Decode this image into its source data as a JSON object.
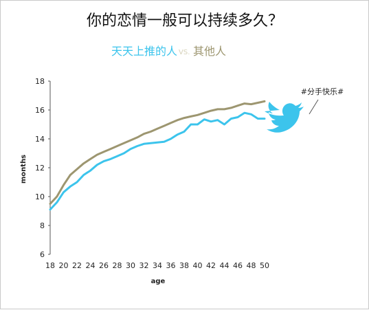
{
  "chart_data": {
    "type": "line",
    "title": "你的恋情一般可以持续多久？",
    "xlabel": "age",
    "ylabel": "months",
    "x": [
      18,
      19,
      20,
      21,
      22,
      23,
      24,
      25,
      26,
      27,
      28,
      29,
      30,
      31,
      32,
      33,
      34,
      35,
      36,
      37,
      38,
      39,
      40,
      41,
      42,
      43,
      44,
      45,
      46,
      47,
      48,
      49,
      50
    ],
    "xticks": [
      18,
      20,
      22,
      24,
      26,
      28,
      30,
      32,
      34,
      36,
      38,
      40,
      42,
      44,
      46,
      48,
      50
    ],
    "yticks": [
      6,
      8,
      10,
      12,
      14,
      16,
      18
    ],
    "xlim": [
      18,
      50
    ],
    "ylim": [
      6,
      18
    ],
    "grid": false,
    "legend": {
      "position": "top-center",
      "separator": "VS."
    },
    "series": [
      {
        "name": "天天上推的人",
        "color": "#3cc4ec",
        "values": [
          9.1,
          9.6,
          10.3,
          10.7,
          11.0,
          11.5,
          11.8,
          12.2,
          12.45,
          12.6,
          12.8,
          13.0,
          13.3,
          13.5,
          13.65,
          13.7,
          13.75,
          13.8,
          14.0,
          14.3,
          14.5,
          15.0,
          15.0,
          15.35,
          15.2,
          15.3,
          15.0,
          15.4,
          15.5,
          15.8,
          15.7,
          15.4,
          15.4
        ]
      },
      {
        "name": "其他人",
        "color": "#9d9670",
        "values": [
          9.5,
          10.0,
          10.8,
          11.5,
          11.9,
          12.3,
          12.6,
          12.9,
          13.1,
          13.3,
          13.5,
          13.7,
          13.9,
          14.1,
          14.35,
          14.5,
          14.7,
          14.9,
          15.1,
          15.3,
          15.45,
          15.55,
          15.65,
          15.8,
          15.95,
          16.05,
          16.05,
          16.15,
          16.3,
          16.45,
          16.4,
          16.5,
          16.6
        ]
      }
    ],
    "annotation": {
      "text": "#分手快乐#",
      "icon": "twitter-bird-icon",
      "icon_color": "#3cc4ec"
    }
  }
}
